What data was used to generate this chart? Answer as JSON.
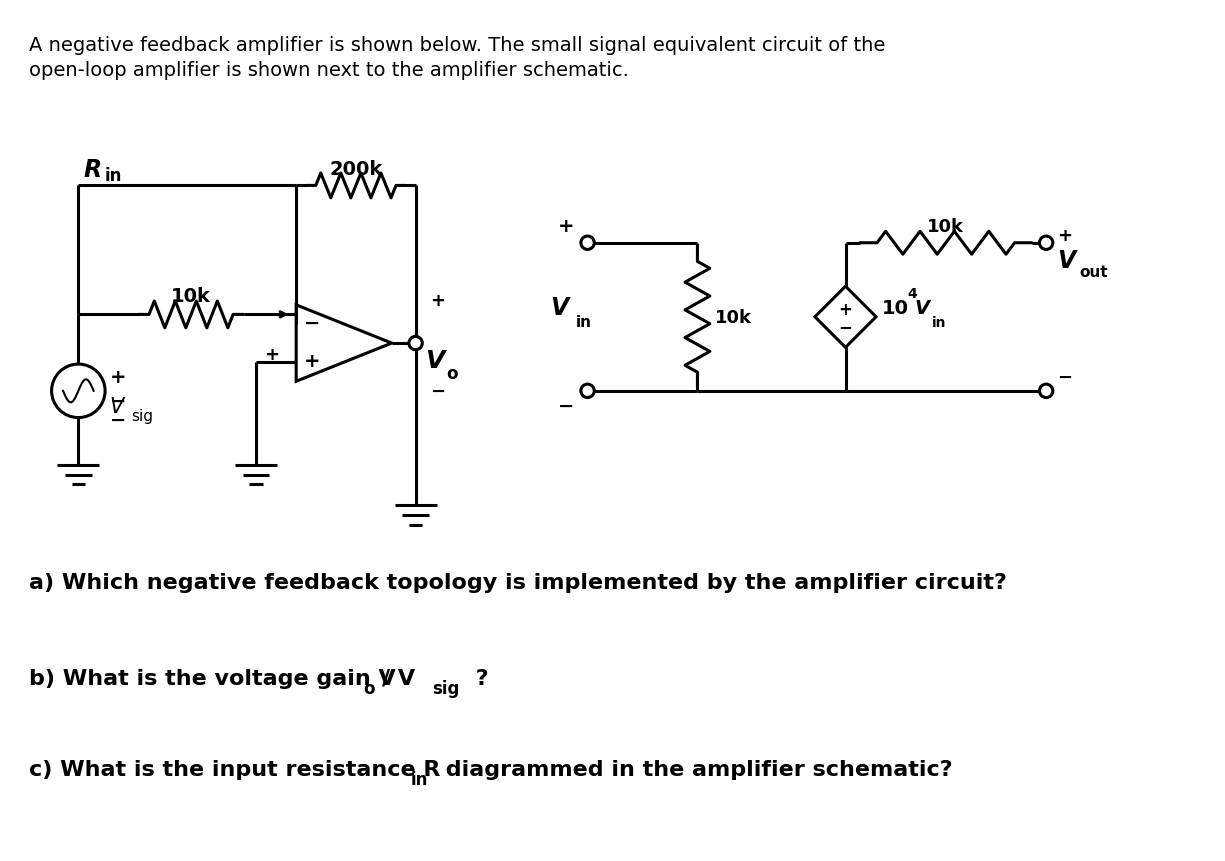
{
  "bg_color": "#ffffff",
  "line_color": "#000000",
  "lw": 2.2,
  "title_line1": "A negative feedback amplifier is shown below. The small signal equivalent circuit of the",
  "title_line2": "open-loop amplifier is shown next to the amplifier schematic.",
  "title_fs": 14,
  "q_a": "a) Which negative feedback topology is implemented by the amplifier circuit?",
  "q_b_pre": "b) What is the voltage gain V",
  "q_b_sub1": "o",
  "q_b_mid": "/ V",
  "q_b_sub2": "sig",
  "q_b_post": " ?",
  "q_c_pre": "c) What is the input resistance R",
  "q_c_sub": "in",
  "q_c_post": " diagrammed in the amplifier schematic?",
  "q_fs": 16,
  "q_sub_fs": 12
}
